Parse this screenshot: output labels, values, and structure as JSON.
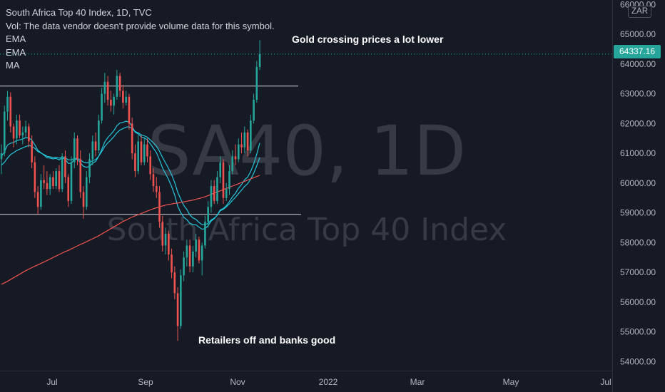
{
  "legend": {
    "title": "South Africa Top 40 Index, 1D, TVC",
    "volume_note": "Vol: The data vendor doesn't provide volume data for this symbol.",
    "indicators": [
      "EMA",
      "EMA",
      "MA"
    ]
  },
  "watermark": {
    "symbol": "SA40, 1D",
    "name": "South Africa Top 40 Index"
  },
  "currency": "ZAR",
  "last_price_label": "64337.16",
  "annotations": {
    "top": "Gold crossing prices a lot lower",
    "bottom": "Retailers off and banks good"
  },
  "colors": {
    "background": "#161a25",
    "up": "#26a69a",
    "down": "#ef5350",
    "ema_fast": "#26c6da",
    "ema_slow": "#26c6da",
    "ma": "#ef5350",
    "level_lines": "#d1d4dc"
  },
  "chart_data": {
    "type": "candlestick",
    "interval": "1D",
    "y_ticks": [
      54000,
      55000,
      56000,
      57000,
      58000,
      59000,
      60000,
      61000,
      62000,
      63000,
      64000,
      65000,
      66000
    ],
    "y_tick_labels": [
      "54000.00",
      "55000.00",
      "56000.00",
      "57000.00",
      "58000.00",
      "59000.00",
      "60000.00",
      "61000.00",
      "62000.00",
      "63000.00",
      "64000.00",
      "65000.00",
      "66000.00"
    ],
    "ylim": [
      53700,
      66150
    ],
    "x_tick_labels": [
      "Jul",
      "Sep",
      "Nov",
      "2022",
      "Mar",
      "May",
      "Jul"
    ],
    "last_price": 64337.16,
    "horizontal_levels": [
      63260,
      58950
    ],
    "candles": [
      {
        "o": 60800,
        "h": 61300,
        "l": 60300,
        "c": 61000
      },
      {
        "o": 61000,
        "h": 62600,
        "l": 60900,
        "c": 62400
      },
      {
        "o": 62400,
        "h": 63100,
        "l": 62100,
        "c": 62900
      },
      {
        "o": 62900,
        "h": 63050,
        "l": 61700,
        "c": 61900
      },
      {
        "o": 61900,
        "h": 62000,
        "l": 61200,
        "c": 61500
      },
      {
        "o": 61500,
        "h": 62300,
        "l": 61300,
        "c": 62100
      },
      {
        "o": 62100,
        "h": 62300,
        "l": 61500,
        "c": 61600
      },
      {
        "o": 61600,
        "h": 61900,
        "l": 61300,
        "c": 61700
      },
      {
        "o": 61700,
        "h": 62100,
        "l": 61500,
        "c": 61900
      },
      {
        "o": 61900,
        "h": 62000,
        "l": 61200,
        "c": 61400
      },
      {
        "o": 61400,
        "h": 61600,
        "l": 60500,
        "c": 60700
      },
      {
        "o": 60700,
        "h": 60900,
        "l": 59500,
        "c": 59700
      },
      {
        "o": 59700,
        "h": 59900,
        "l": 58950,
        "c": 59200
      },
      {
        "o": 59200,
        "h": 60300,
        "l": 59100,
        "c": 60100
      },
      {
        "o": 60100,
        "h": 60600,
        "l": 59800,
        "c": 60000
      },
      {
        "o": 60000,
        "h": 60400,
        "l": 59600,
        "c": 59800
      },
      {
        "o": 59800,
        "h": 60300,
        "l": 59600,
        "c": 60200
      },
      {
        "o": 60200,
        "h": 60400,
        "l": 59800,
        "c": 59900
      },
      {
        "o": 59900,
        "h": 60500,
        "l": 59800,
        "c": 60400
      },
      {
        "o": 60400,
        "h": 60600,
        "l": 59700,
        "c": 59800
      },
      {
        "o": 59800,
        "h": 61000,
        "l": 59700,
        "c": 60900
      },
      {
        "o": 60900,
        "h": 61100,
        "l": 60000,
        "c": 60200
      },
      {
        "o": 60200,
        "h": 60300,
        "l": 59200,
        "c": 59400
      },
      {
        "o": 59400,
        "h": 60900,
        "l": 59300,
        "c": 60700
      },
      {
        "o": 60700,
        "h": 61700,
        "l": 60500,
        "c": 61500
      },
      {
        "o": 61500,
        "h": 61600,
        "l": 60600,
        "c": 60800
      },
      {
        "o": 60800,
        "h": 61100,
        "l": 59500,
        "c": 59700
      },
      {
        "o": 59700,
        "h": 59900,
        "l": 58800,
        "c": 59200
      },
      {
        "o": 59200,
        "h": 60400,
        "l": 59100,
        "c": 60200
      },
      {
        "o": 60200,
        "h": 61000,
        "l": 60000,
        "c": 60800
      },
      {
        "o": 60800,
        "h": 61600,
        "l": 60600,
        "c": 61400
      },
      {
        "o": 61400,
        "h": 61700,
        "l": 60900,
        "c": 61100
      },
      {
        "o": 61100,
        "h": 62300,
        "l": 61000,
        "c": 62100
      },
      {
        "o": 62100,
        "h": 63200,
        "l": 62000,
        "c": 63000
      },
      {
        "o": 63000,
        "h": 63700,
        "l": 62700,
        "c": 63400
      },
      {
        "o": 63400,
        "h": 63600,
        "l": 62600,
        "c": 62800
      },
      {
        "o": 62800,
        "h": 63100,
        "l": 62400,
        "c": 62600
      },
      {
        "o": 62600,
        "h": 63000,
        "l": 62300,
        "c": 62900
      },
      {
        "o": 62900,
        "h": 63800,
        "l": 62800,
        "c": 63600
      },
      {
        "o": 63600,
        "h": 63700,
        "l": 62900,
        "c": 63100
      },
      {
        "o": 63100,
        "h": 63300,
        "l": 62500,
        "c": 62700
      },
      {
        "o": 62700,
        "h": 63100,
        "l": 62600,
        "c": 62900
      },
      {
        "o": 62900,
        "h": 63000,
        "l": 61800,
        "c": 62000
      },
      {
        "o": 62000,
        "h": 62200,
        "l": 60800,
        "c": 61000
      },
      {
        "o": 61000,
        "h": 61300,
        "l": 60200,
        "c": 60400
      },
      {
        "o": 60400,
        "h": 61600,
        "l": 60300,
        "c": 61400
      },
      {
        "o": 61400,
        "h": 61600,
        "l": 60600,
        "c": 60700
      },
      {
        "o": 60700,
        "h": 61500,
        "l": 60600,
        "c": 61300
      },
      {
        "o": 61300,
        "h": 61500,
        "l": 60700,
        "c": 60900
      },
      {
        "o": 60900,
        "h": 61100,
        "l": 60100,
        "c": 60300
      },
      {
        "o": 60300,
        "h": 60500,
        "l": 59700,
        "c": 59900
      },
      {
        "o": 59900,
        "h": 60200,
        "l": 59500,
        "c": 59700
      },
      {
        "o": 59700,
        "h": 59900,
        "l": 58500,
        "c": 58700
      },
      {
        "o": 58700,
        "h": 58900,
        "l": 57700,
        "c": 57900
      },
      {
        "o": 57900,
        "h": 58500,
        "l": 57600,
        "c": 58300
      },
      {
        "o": 58300,
        "h": 58400,
        "l": 57400,
        "c": 57600
      },
      {
        "o": 57600,
        "h": 57800,
        "l": 56800,
        "c": 57000
      },
      {
        "o": 57000,
        "h": 57200,
        "l": 56100,
        "c": 56300
      },
      {
        "o": 56300,
        "h": 56500,
        "l": 54700,
        "c": 55200
      },
      {
        "o": 55200,
        "h": 57100,
        "l": 55100,
        "c": 56900
      },
      {
        "o": 56900,
        "h": 57700,
        "l": 56700,
        "c": 57500
      },
      {
        "o": 57500,
        "h": 58100,
        "l": 57200,
        "c": 57900
      },
      {
        "o": 57900,
        "h": 58100,
        "l": 57000,
        "c": 57200
      },
      {
        "o": 57200,
        "h": 57900,
        "l": 57000,
        "c": 57700
      },
      {
        "o": 57700,
        "h": 58300,
        "l": 57500,
        "c": 58100
      },
      {
        "o": 58100,
        "h": 58200,
        "l": 57300,
        "c": 57400
      },
      {
        "o": 57400,
        "h": 58000,
        "l": 56900,
        "c": 57900
      },
      {
        "o": 57900,
        "h": 58900,
        "l": 57800,
        "c": 58700
      },
      {
        "o": 58700,
        "h": 59400,
        "l": 58500,
        "c": 59200
      },
      {
        "o": 59200,
        "h": 60100,
        "l": 59000,
        "c": 59900
      },
      {
        "o": 59900,
        "h": 60100,
        "l": 59300,
        "c": 59400
      },
      {
        "o": 59400,
        "h": 60400,
        "l": 59300,
        "c": 60200
      },
      {
        "o": 60200,
        "h": 60900,
        "l": 60000,
        "c": 60700
      },
      {
        "o": 60700,
        "h": 60800,
        "l": 59300,
        "c": 59500
      },
      {
        "o": 59500,
        "h": 60000,
        "l": 59400,
        "c": 59800
      },
      {
        "o": 59800,
        "h": 60600,
        "l": 59600,
        "c": 60400
      },
      {
        "o": 60400,
        "h": 61100,
        "l": 60300,
        "c": 60900
      },
      {
        "o": 60900,
        "h": 61300,
        "l": 60600,
        "c": 60800
      },
      {
        "o": 60800,
        "h": 61500,
        "l": 60700,
        "c": 61300
      },
      {
        "o": 61300,
        "h": 61700,
        "l": 61000,
        "c": 61200
      },
      {
        "o": 61200,
        "h": 61900,
        "l": 61000,
        "c": 61700
      },
      {
        "o": 61700,
        "h": 61800,
        "l": 60900,
        "c": 61100
      },
      {
        "o": 61100,
        "h": 62300,
        "l": 61000,
        "c": 62100
      },
      {
        "o": 62100,
        "h": 63000,
        "l": 62000,
        "c": 62800
      },
      {
        "o": 62800,
        "h": 64100,
        "l": 62700,
        "c": 63900
      },
      {
        "o": 63900,
        "h": 64800,
        "l": 63800,
        "c": 64337.16
      }
    ],
    "series": [
      {
        "name": "EMA",
        "values": [
          60900,
          61050,
          61280,
          61340,
          61360,
          61430,
          61450,
          61480,
          61530,
          61520,
          61440,
          61280,
          61100,
          61020,
          60940,
          60850,
          60840,
          60810,
          60830,
          60780,
          60850,
          60800,
          60660,
          60670,
          60800,
          60800,
          60680,
          60560,
          60530,
          60560,
          60670,
          60730,
          60900,
          61130,
          61380,
          61530,
          61640,
          61760,
          61930,
          62020,
          62040,
          62080,
          62050,
          61900,
          61710,
          61650,
          61550,
          61520,
          61450,
          61320,
          61170,
          61020,
          60780,
          60510,
          60320,
          60120,
          59880,
          59600,
          59220,
          59010,
          58850,
          58770,
          58650,
          58600,
          58600,
          58520,
          58450,
          58470,
          58570,
          58720,
          58800,
          58930,
          59100,
          59150,
          59240,
          59380,
          59540,
          59660,
          59830,
          59950,
          60110,
          60200,
          60390,
          60640,
          60970,
          61350
        ]
      },
      {
        "name": "EMA",
        "values": [
          60600,
          60700,
          60840,
          60960,
          61020,
          61090,
          61140,
          61180,
          61230,
          61260,
          61240,
          61160,
          61060,
          61010,
          60960,
          60900,
          60880,
          60860,
          60860,
          60840,
          60860,
          60850,
          60780,
          60780,
          60830,
          60830,
          60780,
          60700,
          60680,
          60690,
          60750,
          60790,
          60900,
          61060,
          61230,
          61350,
          61450,
          61560,
          61690,
          61780,
          61830,
          61880,
          61890,
          61830,
          61730,
          61690,
          61620,
          61590,
          61540,
          61450,
          61350,
          61240,
          61070,
          60860,
          60680,
          60490,
          60280,
          60020,
          59690,
          59460,
          59250,
          59110,
          58930,
          58830,
          58780,
          58680,
          58600,
          58600,
          58650,
          58760,
          58820,
          58920,
          59070,
          59120,
          59200,
          59300,
          59420,
          59520,
          59650,
          59760,
          59890,
          59980,
          60130,
          60330,
          60580,
          60860
        ]
      },
      {
        "name": "MA",
        "values": [
          56600,
          56650,
          56700,
          56760,
          56820,
          56880,
          56940,
          57000,
          57060,
          57110,
          57160,
          57210,
          57250,
          57300,
          57350,
          57400,
          57450,
          57500,
          57550,
          57600,
          57650,
          57700,
          57740,
          57790,
          57840,
          57890,
          57940,
          57980,
          58030,
          58080,
          58130,
          58180,
          58230,
          58290,
          58350,
          58410,
          58470,
          58530,
          58590,
          58650,
          58710,
          58760,
          58810,
          58860,
          58900,
          58940,
          58980,
          59020,
          59060,
          59100,
          59140,
          59170,
          59200,
          59230,
          59260,
          59280,
          59300,
          59320,
          59330,
          59350,
          59370,
          59390,
          59410,
          59430,
          59460,
          59480,
          59510,
          59540,
          59580,
          59620,
          59660,
          59700,
          59740,
          59780,
          59820,
          59860,
          59900,
          59940,
          59980,
          60020,
          60060,
          60100,
          60140,
          60180,
          60220,
          60260
        ]
      }
    ],
    "grid": false,
    "legend_position": "top-left"
  }
}
